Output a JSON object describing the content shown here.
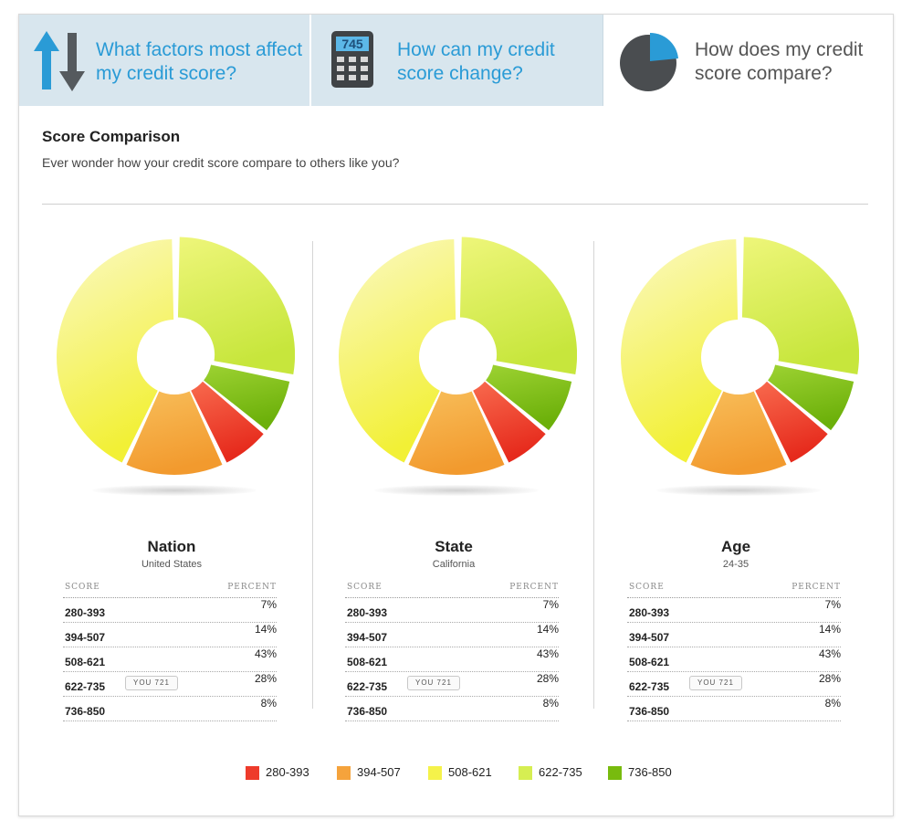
{
  "tabs": [
    {
      "label": "What factors most affect my credit score?",
      "icon": "up-down-arrows-icon",
      "active": false
    },
    {
      "label": "How can my credit score change?",
      "icon": "calculator-icon",
      "icon_text": "745",
      "active": false
    },
    {
      "label": "How does my credit score compare?",
      "icon": "pie-chart-icon",
      "active": true
    }
  ],
  "section": {
    "title": "Score Comparison",
    "subtitle": "Ever wonder how your credit score compare to others like you?"
  },
  "table_headers": {
    "score": "SCORE",
    "percent": "PERCENT"
  },
  "you_label": "YOU 721",
  "colors": {
    "280-393": "#ee3b2b",
    "394-507": "#f5a33c",
    "508-621": "#f5f24a",
    "622-735": "#d6ee52",
    "736-850": "#78bb0e",
    "tab_bg": "#d8e6ee",
    "tab_text": "#2a9bd6"
  },
  "chart_data": [
    {
      "type": "pie",
      "title": "Nation",
      "subtitle": "United States",
      "categories": [
        "280-393",
        "394-507",
        "508-621",
        "622-735",
        "736-850"
      ],
      "values": [
        7,
        14,
        43,
        28,
        8
      ],
      "you_row": 3
    },
    {
      "type": "pie",
      "title": "State",
      "subtitle": "California",
      "categories": [
        "280-393",
        "394-507",
        "508-621",
        "622-735",
        "736-850"
      ],
      "values": [
        7,
        14,
        43,
        28,
        8
      ],
      "you_row": 3
    },
    {
      "type": "pie",
      "title": "Age",
      "subtitle": "24-35",
      "categories": [
        "280-393",
        "394-507",
        "508-621",
        "622-735",
        "736-850"
      ],
      "values": [
        7,
        14,
        43,
        28,
        8
      ],
      "you_row": 3
    }
  ],
  "legend": [
    "280-393",
    "394-507",
    "508-621",
    "622-735",
    "736-850"
  ]
}
